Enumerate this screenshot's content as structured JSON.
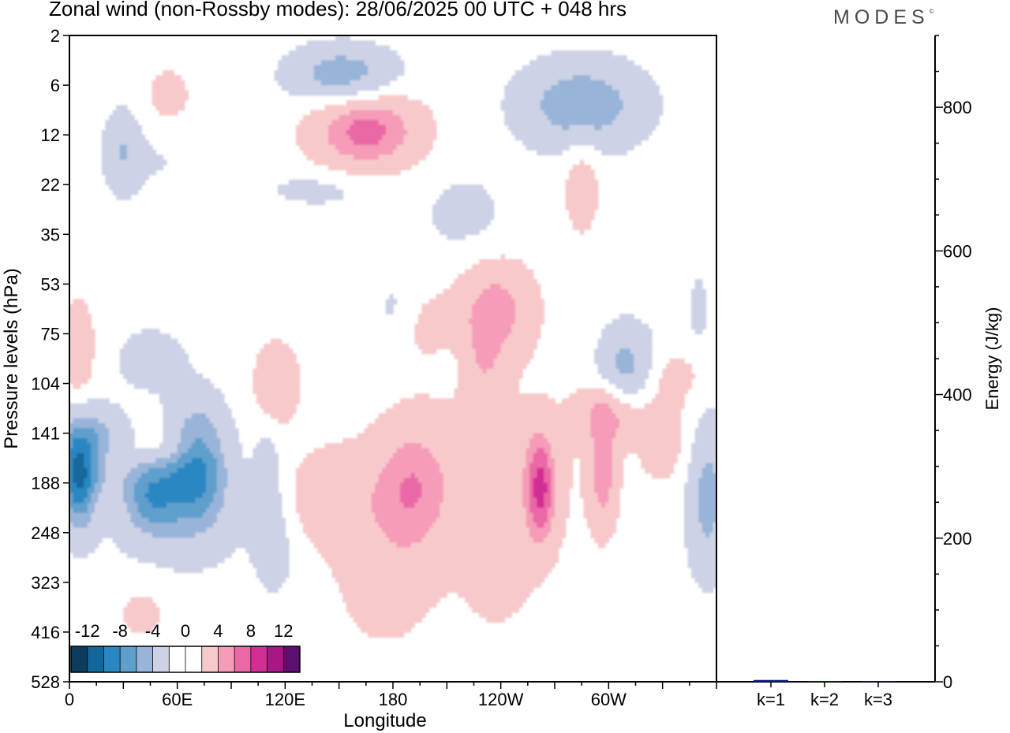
{
  "title": "Zonal wind (non-Rossby modes):  28/06/2025  00 UTC  + 048 hrs",
  "logo": "MODES",
  "logo_mark": "©",
  "chart_data": [
    {
      "type": "heatmap",
      "title": "Zonal wind (non-Rossby modes):  28/06/2025  00 UTC  + 048 hrs",
      "xlabel": "Longitude",
      "ylabel": "Pressure levels (hPa)",
      "x_ticks": [
        "0",
        "60E",
        "120E",
        "180",
        "120W",
        "60W"
      ],
      "x_tick_values": [
        0,
        60,
        120,
        180,
        240,
        300
      ],
      "xlim": [
        0,
        360
      ],
      "y_ticks": [
        "2",
        "6",
        "12",
        "22",
        "35",
        "53",
        "75",
        "104",
        "141",
        "188",
        "248",
        "323",
        "416",
        "528"
      ],
      "colorbar_labels": [
        "-12",
        "-8",
        "-4",
        "0",
        "4",
        "8",
        "12"
      ],
      "colorbar_colors": [
        "#0d3b5e",
        "#12679a",
        "#2a87c2",
        "#5f9fcc",
        "#98b4d8",
        "#cdd2e6",
        "#ffffff",
        "#ffffff",
        "#f8c9cb",
        "#f59cb8",
        "#ea68a6",
        "#d12f93",
        "#a81784",
        "#5b0f6e"
      ],
      "blobs": [
        {
          "x": 30,
          "y": 2.3,
          "rx": 9,
          "ry": 0.9,
          "v": -3
        },
        {
          "x": 55,
          "y": 1.3,
          "rx": 16,
          "ry": 0.8,
          "v": 2
        },
        {
          "x": 152,
          "y": 0.8,
          "rx": 30,
          "ry": 0.6,
          "v": -6
        },
        {
          "x": 165,
          "y": 1.9,
          "rx": 30,
          "ry": 0.8,
          "v": 7
        },
        {
          "x": 285,
          "y": 1.4,
          "rx": 35,
          "ry": 0.9,
          "v": -6
        },
        {
          "x": 220,
          "y": 3.6,
          "rx": 25,
          "ry": 0.9,
          "v": -2
        },
        {
          "x": 285,
          "y": 3.0,
          "rx": 10,
          "ry": 1.0,
          "v": 3
        },
        {
          "x": 140,
          "y": 3.1,
          "rx": 35,
          "ry": 0.4,
          "v": -2
        },
        {
          "x": 45,
          "y": 2.4,
          "rx": 35,
          "ry": 0.8,
          "v": -1.5
        },
        {
          "x": 237,
          "y": 5.5,
          "rx": 22,
          "ry": 1.0,
          "v": 5
        },
        {
          "x": 230,
          "y": 6.6,
          "rx": 12,
          "ry": 0.8,
          "v": 3
        },
        {
          "x": 180,
          "y": 5.5,
          "rx": 12,
          "ry": 0.8,
          "v": -1.5
        },
        {
          "x": 350,
          "y": 5.5,
          "rx": 10,
          "ry": 1.2,
          "v": -1.5
        },
        {
          "x": 60,
          "y": 8.2,
          "rx": 20,
          "ry": 0.6,
          "v": 2
        },
        {
          "x": 15,
          "y": 8.5,
          "rx": 15,
          "ry": 0.4,
          "v": 1.5
        },
        {
          "x": 50,
          "y": 8.3,
          "rx": 25,
          "ry": 0.3,
          "v": 1.5
        },
        {
          "x": 5,
          "y": 6.3,
          "rx": 8,
          "ry": 0.9,
          "v": 4
        },
        {
          "x": 45,
          "y": 6.5,
          "rx": 18,
          "ry": 0.6,
          "v": -3
        },
        {
          "x": 300,
          "y": 7.6,
          "rx": 18,
          "ry": 0.6,
          "v": 5
        },
        {
          "x": 310,
          "y": 6.7,
          "rx": 16,
          "ry": 0.9,
          "v": -5
        },
        {
          "x": 340,
          "y": 6.8,
          "rx": 18,
          "ry": 0.5,
          "v": 2
        },
        {
          "x": 115,
          "y": 7.0,
          "rx": 12,
          "ry": 0.8,
          "v": 4
        },
        {
          "x": 200,
          "y": 6.0,
          "rx": 15,
          "ry": 0.8,
          "v": 2
        },
        {
          "x": 210,
          "y": 6.5,
          "rx": 20,
          "ry": 0.5,
          "v": -1
        },
        {
          "x": 12,
          "y": 8.3,
          "rx": 20,
          "ry": 0.8,
          "v": -6
        },
        {
          "x": 5,
          "y": 9.0,
          "rx": 10,
          "ry": 1.0,
          "v": -8
        },
        {
          "x": 70,
          "y": 8.6,
          "rx": 18,
          "ry": 1.2,
          "v": -9
        },
        {
          "x": 45,
          "y": 9.2,
          "rx": 15,
          "ry": 0.8,
          "v": -6
        },
        {
          "x": 60,
          "y": 9.8,
          "rx": 45,
          "ry": 1.1,
          "v": -2
        },
        {
          "x": 110,
          "y": 9.0,
          "rx": 8,
          "ry": 1.2,
          "v": -3
        },
        {
          "x": 115,
          "y": 10.4,
          "rx": 12,
          "ry": 1.0,
          "v": -2
        },
        {
          "x": 40,
          "y": 11.6,
          "rx": 15,
          "ry": 0.6,
          "v": 2
        },
        {
          "x": 145,
          "y": 9.3,
          "rx": 25,
          "ry": 1.0,
          "v": 3
        },
        {
          "x": 190,
          "y": 9.1,
          "rx": 20,
          "ry": 1.2,
          "v": 4
        },
        {
          "x": 200,
          "y": 9.0,
          "rx": 40,
          "ry": 1.8,
          "v": 2
        },
        {
          "x": 255,
          "y": 9.0,
          "rx": 30,
          "ry": 1.8,
          "v": 2
        },
        {
          "x": 262,
          "y": 9.1,
          "rx": 8,
          "ry": 1.1,
          "v": 7
        },
        {
          "x": 297,
          "y": 8.9,
          "rx": 8,
          "ry": 1.1,
          "v": 5
        },
        {
          "x": 175,
          "y": 11.0,
          "rx": 30,
          "ry": 1.5,
          "v": 2
        },
        {
          "x": 240,
          "y": 11.0,
          "rx": 20,
          "ry": 1.0,
          "v": 2
        },
        {
          "x": 355,
          "y": 9.3,
          "rx": 12,
          "ry": 1.6,
          "v": -5
        },
        {
          "x": 330,
          "y": 8.0,
          "rx": 15,
          "ry": 1.0,
          "v": 3
        },
        {
          "x": 270,
          "y": 11.8,
          "rx": 20,
          "ry": 0.7,
          "v": -1
        },
        {
          "x": 255,
          "y": 13.0,
          "rx": 30,
          "ry": 0.5,
          "v": 1
        }
      ]
    },
    {
      "type": "bar",
      "categories": [
        "k=1",
        "k=2",
        "k=3"
      ],
      "values": [
        2.5,
        1,
        0.8
      ],
      "ylabel": "Energy (J/kg)",
      "y_ticks": [
        "0",
        "200",
        "400",
        "600",
        "800"
      ],
      "y_tick_values": [
        0,
        200,
        400,
        600,
        800
      ],
      "ylim": [
        0,
        900
      ],
      "color": "#0a1a8c"
    }
  ]
}
